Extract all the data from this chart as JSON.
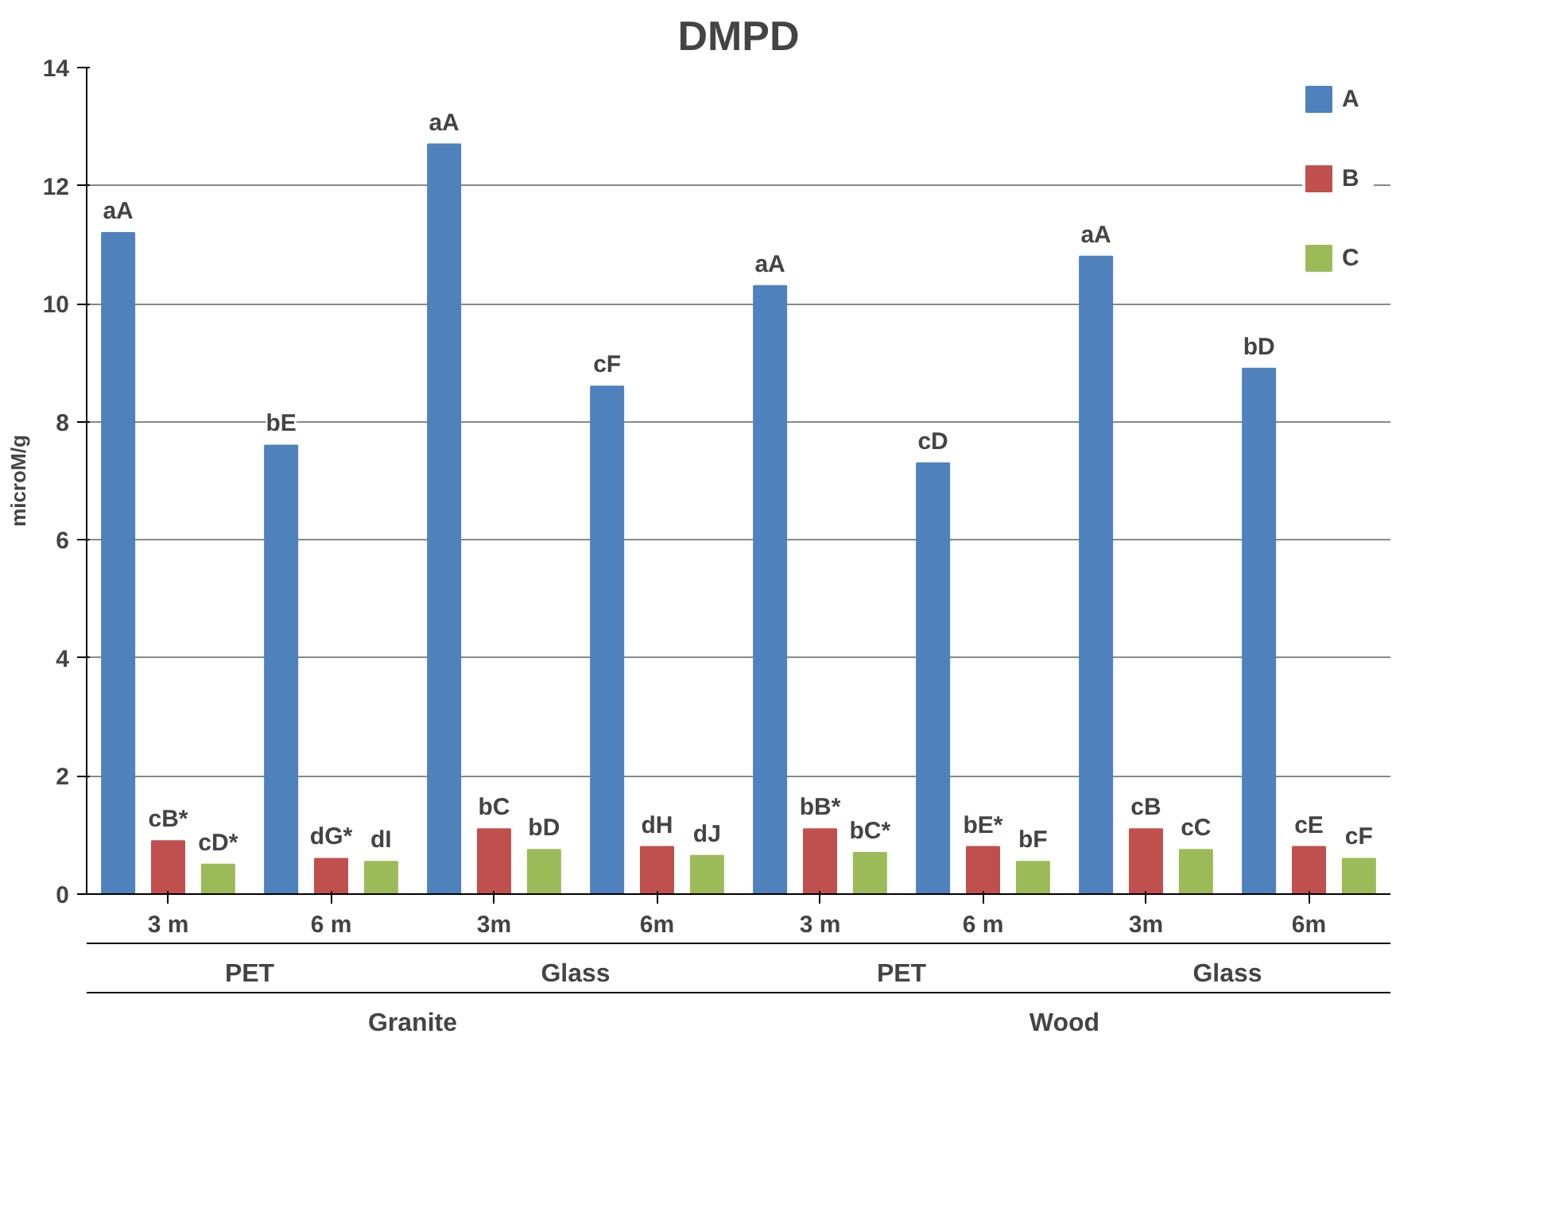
{
  "chart_data": {
    "type": "bar",
    "title": "DMPD",
    "ylabel": "microM/g",
    "categories": [
      "3 m",
      "6 m",
      "3m",
      "6m",
      "3 m",
      "6 m",
      "3m",
      "6m"
    ],
    "annotations": [
      "PET",
      "Glass",
      "PET",
      "Glass",
      "Granite",
      "Wood"
    ],
    "series": [
      {
        "name": "A",
        "color": "#4f81bd",
        "values": [
          11.2,
          7.6,
          12.7,
          8.6,
          10.3,
          7.3,
          10.8,
          8.9
        ],
        "value_labels": [
          "aA",
          "bE",
          "aA",
          "cF",
          "aA",
          "cD",
          "aA",
          "bD"
        ]
      },
      {
        "name": "B",
        "color": "#c0504d",
        "values": [
          0.9,
          0.6,
          1.1,
          0.8,
          1.1,
          0.8,
          1.1,
          0.8
        ],
        "value_labels": [
          "cB*",
          "dG*",
          "bC",
          "dH",
          "bB*",
          "bE*",
          "cB",
          "cE"
        ]
      },
      {
        "name": "C",
        "color": "#9bbb59",
        "values": [
          0.5,
          0.55,
          0.75,
          0.65,
          0.7,
          0.55,
          0.75,
          0.6
        ],
        "value_labels": [
          "cD*",
          "dI",
          "bD",
          "dJ",
          "bC*",
          "bF",
          "cC",
          "cF"
        ]
      }
    ],
    "ylim": [
      0,
      14
    ],
    "yticks": [
      0,
      2,
      4,
      6,
      8,
      10,
      12,
      14
    ],
    "grid": "y",
    "legend": "top right"
  }
}
